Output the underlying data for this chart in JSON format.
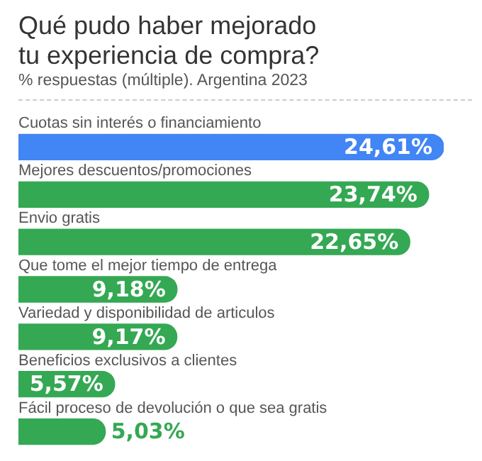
{
  "chart_data": {
    "type": "bar",
    "orientation": "horizontal",
    "title": "Qué pudo haber mejorado tu experiencia de compra?",
    "subtitle": "% respuestas (múltiple). Argentina  2023",
    "categories": [
      "Cuotas sin interés o financiamiento",
      "Mejores descuentos/promociones",
      "Envio gratis",
      "Que tome el mejor tiempo de entrega",
      "Variedad y disponibilidad de articulos",
      "Beneficios exclusivos a clientes",
      "Fácil proceso de devolución o que sea gratis"
    ],
    "values": [
      24.61,
      23.74,
      22.65,
      9.18,
      9.17,
      5.57,
      5.03
    ],
    "value_labels": [
      "24,61%",
      "23,74%",
      "22,65%",
      "9,18%",
      "9,17%",
      "5,57%",
      "5,03%"
    ],
    "colors": [
      "#4285f4",
      "#34a853",
      "#34a853",
      "#34a853",
      "#34a853",
      "#34a853",
      "#34a853"
    ],
    "legend": false
  }
}
